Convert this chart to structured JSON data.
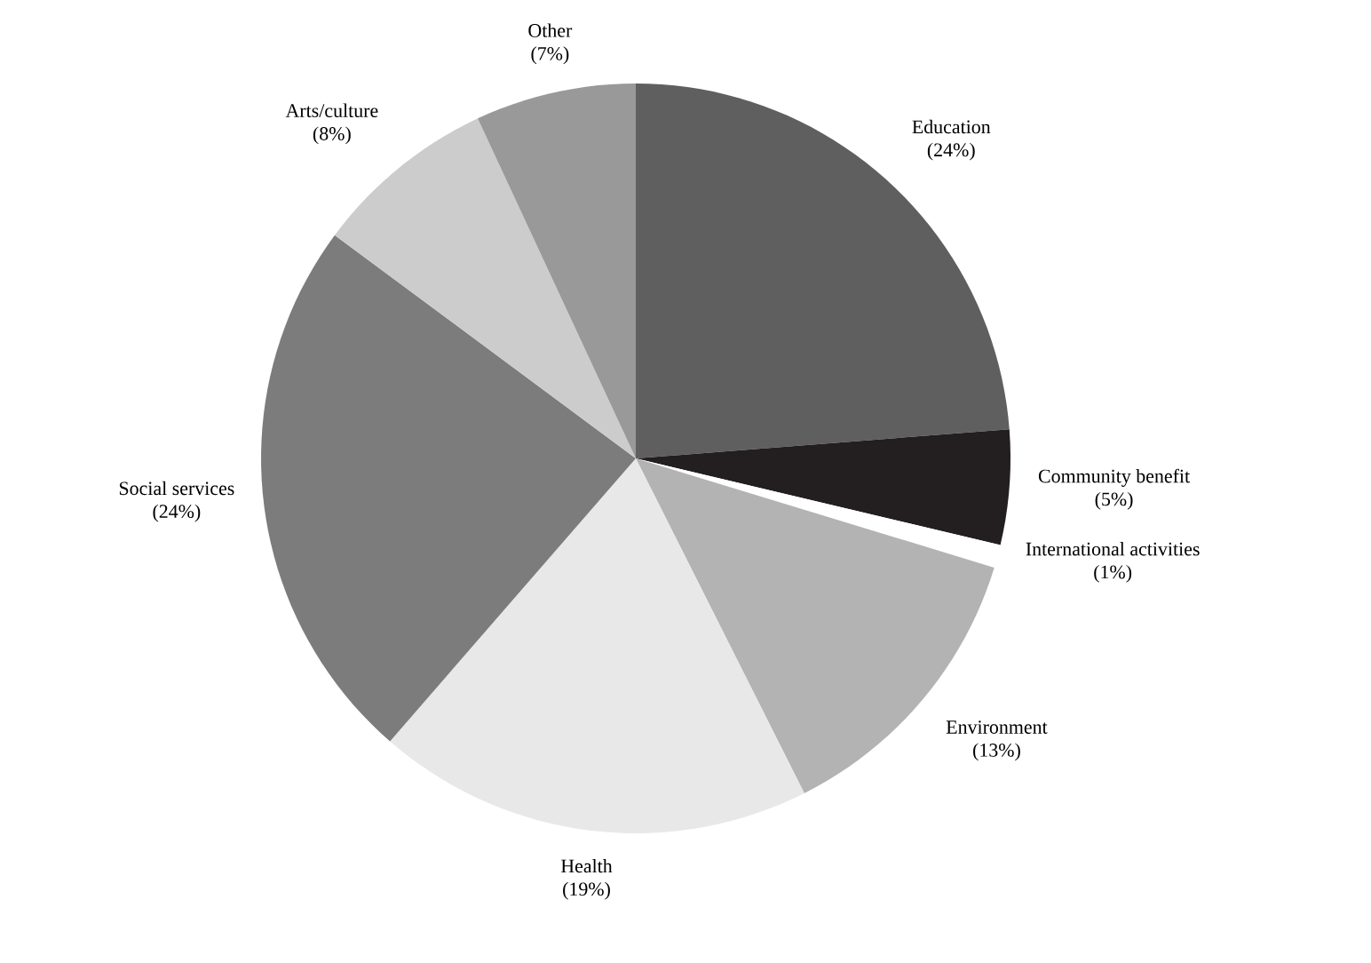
{
  "chart_data": {
    "type": "pie",
    "categories": [
      "Education",
      "Community benefit",
      "International activities",
      "Environment",
      "Health",
      "Social services",
      "Arts/culture",
      "Other"
    ],
    "values": [
      24,
      5,
      1,
      13,
      19,
      24,
      8,
      7
    ],
    "value_labels": [
      "(24%)",
      "(5%)",
      "(1%)",
      "(13%)",
      "(19%)",
      "(24%)",
      "(8%)",
      "(7%)"
    ],
    "colors": [
      "#5f5f5f",
      "#231f20",
      "#ffffff",
      "#b3b3b3",
      "#e8e8e8",
      "#7c7c7c",
      "#cccccc",
      "#999999"
    ]
  }
}
